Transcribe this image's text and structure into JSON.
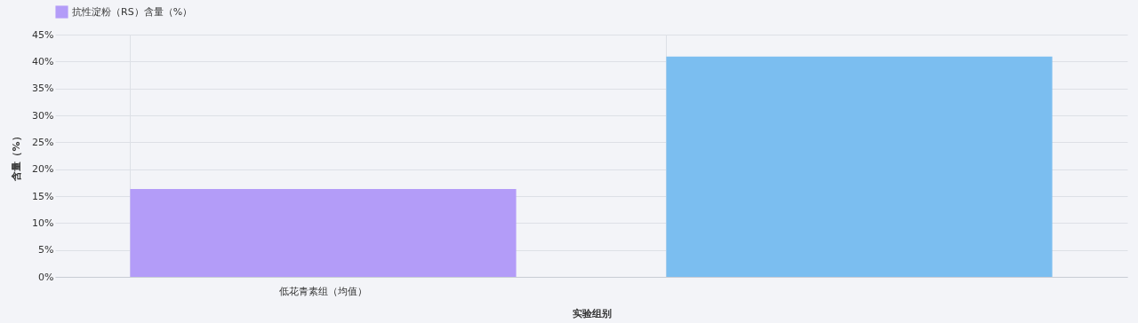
{
  "chart_data": {
    "type": "bar",
    "xlabel": "实验组别",
    "ylabel": "含量（%）",
    "categories": [
      "低花青素组（均值）",
      null
    ],
    "series": [
      {
        "name": "抗性淀粉（RS）含量（%）",
        "color": "#b39cf8",
        "colors": [
          "#b39cf8",
          "#7bbef0"
        ],
        "values": [
          16.3,
          40.9
        ]
      }
    ],
    "ylim": [
      0,
      45
    ],
    "yticks": [
      {
        "value": 0,
        "label": "0%"
      },
      {
        "value": 5,
        "label": "5%"
      },
      {
        "value": 10,
        "label": "10%"
      },
      {
        "value": 15,
        "label": "15%"
      },
      {
        "value": 20,
        "label": "20%"
      },
      {
        "value": 25,
        "label": "25%"
      },
      {
        "value": 30,
        "label": "30%"
      },
      {
        "value": 35,
        "label": "35%"
      },
      {
        "value": 40,
        "label": "40%"
      },
      {
        "value": 45,
        "label": "45%"
      }
    ],
    "grid": true,
    "legend": "top"
  }
}
